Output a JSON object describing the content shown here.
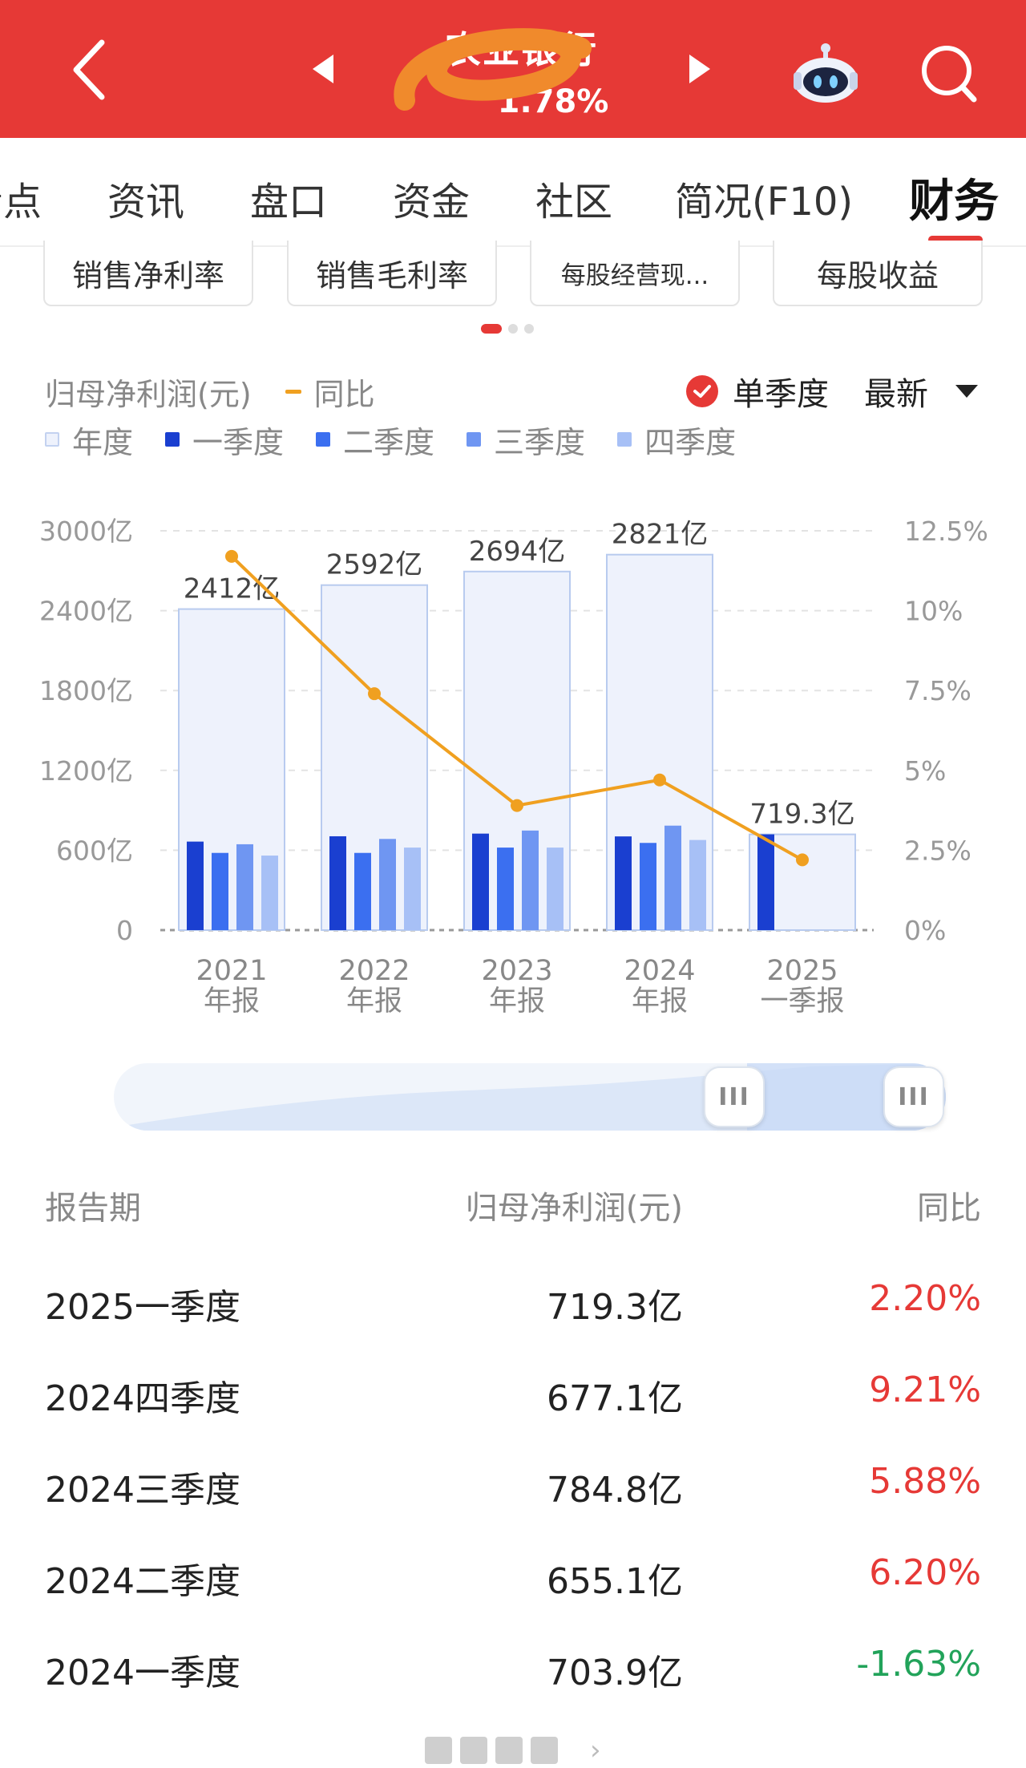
{
  "header": {
    "back_icon": "chevron-left-icon",
    "title": "农业银行",
    "change": "1.78%",
    "prev_icon": "triangle-left-icon",
    "next_icon": "triangle-right-icon",
    "assistant_icon": "robot-icon",
    "search_icon": "search-icon",
    "bg_color": "#e63936"
  },
  "tabs": [
    {
      "label": "看点"
    },
    {
      "label": "资讯"
    },
    {
      "label": "盘口"
    },
    {
      "label": "资金"
    },
    {
      "label": "社区"
    },
    {
      "label": "简况(F10)"
    },
    {
      "label": "财务",
      "active": true
    }
  ],
  "metrics": [
    {
      "label": "销售净利率"
    },
    {
      "label": "销售毛利率"
    },
    {
      "label": "每股经营现..."
    },
    {
      "label": "每股收益"
    }
  ],
  "legend": {
    "metric": "归母净利润(元)",
    "yoy": "同比",
    "single_quarter": "单季度",
    "latest": "最新",
    "items": [
      {
        "label": "年度",
        "color": "#eef2fc"
      },
      {
        "label": "一季度",
        "color": "#1a3fd0"
      },
      {
        "label": "二季度",
        "color": "#3b6ff0"
      },
      {
        "label": "三季度",
        "color": "#6f96f2"
      },
      {
        "label": "四季度",
        "color": "#a7c0f6"
      }
    ]
  },
  "chart_data": {
    "type": "bar",
    "categories": [
      {
        "year": "2021",
        "period": "年报"
      },
      {
        "year": "2022",
        "period": "年报"
      },
      {
        "year": "2023",
        "period": "年报"
      },
      {
        "year": "2024",
        "period": "年报"
      },
      {
        "year": "2025",
        "period": "一季报"
      }
    ],
    "annual_values": [
      2412,
      2592,
      2694,
      2821,
      719.3
    ],
    "annual_labels": [
      "2412亿",
      "2592亿",
      "2694亿",
      "2821亿",
      "719.3亿"
    ],
    "quarterly_series": [
      {
        "name": "一季度",
        "values": [
          665,
          705,
          725,
          703.9,
          719.3
        ]
      },
      {
        "name": "二季度",
        "values": [
          580,
          580,
          620,
          655.1,
          null
        ]
      },
      {
        "name": "三季度",
        "values": [
          645,
          685,
          748,
          784.8,
          null
        ]
      },
      {
        "name": "四季度",
        "values": [
          560,
          620,
          620,
          677.1,
          null
        ]
      }
    ],
    "yoy_series": {
      "name": "同比",
      "values": [
        11.7,
        7.4,
        3.9,
        4.7,
        2.2
      ]
    },
    "y_left": {
      "min": 0,
      "max": 3000,
      "ticks": [
        "0",
        "600亿",
        "1200亿",
        "1800亿",
        "2400亿",
        "3000亿"
      ]
    },
    "y_right": {
      "min": 0,
      "max": 12.5,
      "ticks": [
        "0%",
        "2.5%",
        "5%",
        "7.5%",
        "10%",
        "12.5%"
      ]
    },
    "colors": {
      "annual": "#eef2fc",
      "annual_border": "#b8cbef",
      "q1": "#1a3fd0",
      "q2": "#3b6ff0",
      "q3": "#6f96f2",
      "q4": "#a7c0f6",
      "yoy": "#f0a020"
    },
    "grid": true
  },
  "table": {
    "headers": {
      "period": "报告期",
      "value": "归母净利润(元)",
      "yoy": "同比"
    },
    "rows": [
      {
        "period": "2025一季度",
        "value": "719.3亿",
        "yoy": "2.20%",
        "trend": "up"
      },
      {
        "period": "2024四季度",
        "value": "677.1亿",
        "yoy": "9.21%",
        "trend": "up"
      },
      {
        "period": "2024三季度",
        "value": "784.8亿",
        "yoy": "5.88%",
        "trend": "up"
      },
      {
        "period": "2024二季度",
        "value": "655.1亿",
        "yoy": "6.20%",
        "trend": "up"
      },
      {
        "period": "2024一季度",
        "value": "703.9亿",
        "yoy": "-1.63%",
        "trend": "down"
      }
    ]
  },
  "slider": {
    "handle_icon": "drag-handle-icon",
    "handle_glyph": "III"
  }
}
